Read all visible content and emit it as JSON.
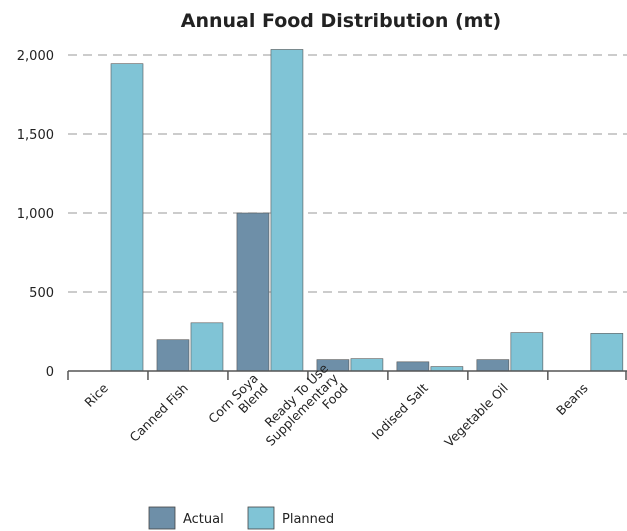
{
  "chart_data": {
    "type": "bar",
    "title": "Annual Food Distribution (mt)",
    "xlabel": "",
    "ylabel": "",
    "ylim": [
      0,
      2000
    ],
    "yticks": [
      0,
      500,
      1000,
      1500,
      2000
    ],
    "ytick_labels": [
      "0",
      "500",
      "1,000",
      "1,500",
      "2,000"
    ],
    "grid": true,
    "legend_position": "bottom",
    "categories": [
      [
        "Rice"
      ],
      [
        "Canned Fish"
      ],
      [
        "Corn Soya",
        "Blend"
      ],
      [
        "Ready To Use",
        "Supplementary",
        "Food"
      ],
      [
        "Iodised Salt"
      ],
      [
        "Vegetable Oil"
      ],
      [
        "Beans"
      ]
    ],
    "series": [
      {
        "name": "Actual",
        "color": "#6e8fa8",
        "values": [
          null,
          198,
          1000,
          72,
          58,
          72,
          null
        ]
      },
      {
        "name": "Planned",
        "color": "#80c4d6",
        "values": [
          1945,
          305,
          2035,
          78,
          28,
          243,
          238
        ]
      }
    ]
  }
}
